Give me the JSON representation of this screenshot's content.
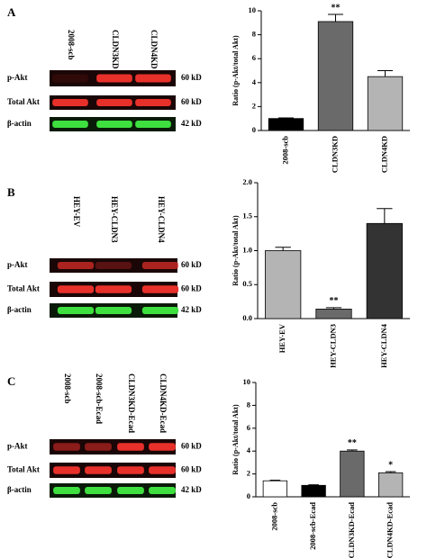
{
  "chart_data": [
    {
      "type": "bar",
      "panel": "A",
      "ylabel": "Ratio (p-Akt/total Akt)",
      "categories": [
        "2008-scb",
        "CLDN3KD",
        "CLDN4KD"
      ],
      "values": [
        1.0,
        9.1,
        4.5
      ],
      "errors": [
        0.05,
        0.6,
        0.5
      ],
      "colors": [
        "#000000",
        "#6a6a6a",
        "#b4b4b4"
      ],
      "annotations": [
        null,
        "**",
        null
      ],
      "ylim": [
        0,
        10
      ],
      "yticks": [
        0,
        2,
        4,
        6,
        8,
        10
      ]
    },
    {
      "type": "bar",
      "panel": "B",
      "ylabel": "Ratio (p-Akt/total Akt)",
      "categories": [
        "HEY-EV",
        "HEY-CLDN3",
        "HEY-CLDN4"
      ],
      "values": [
        1.0,
        0.14,
        1.4
      ],
      "errors": [
        0.05,
        0.02,
        0.22
      ],
      "colors": [
        "#b4b4b4",
        "#6a6a6a",
        "#333333"
      ],
      "annotations": [
        null,
        "**",
        null
      ],
      "ylim": [
        0,
        2
      ],
      "yticks": [
        {
          "value": 0,
          "label": "0.0"
        },
        0.5,
        {
          "value": 1,
          "label": "1.0"
        },
        1.5,
        {
          "value": 2,
          "label": "2.0"
        }
      ]
    },
    {
      "type": "bar",
      "panel": "C",
      "ylabel": "Ratio (p-Akt/total Akt)",
      "categories": [
        "2008-scb",
        "2008-scb-Ecad",
        "CLDN3KD-Ecad",
        "CLDN4KD-Ecad"
      ],
      "values": [
        1.4,
        1.0,
        4.0,
        2.1
      ],
      "errors": [
        0.05,
        0.05,
        0.1,
        0.1
      ],
      "colors": [
        "#ffffff",
        "#000000",
        "#6a6a6a",
        "#b4b4b4"
      ],
      "annotations": [
        null,
        null,
        "**",
        "*"
      ],
      "ylim": [
        0,
        10
      ],
      "yticks": [
        0,
        2,
        4,
        6,
        8,
        10
      ]
    }
  ],
  "blots": [
    {
      "lanes": [
        "2008-scb",
        "CLDN3KD",
        "CLDN4KD"
      ],
      "rows": [
        {
          "name": "p-Akt",
          "size": "60 kD"
        },
        {
          "name": "Total Akt",
          "size": "60 kD"
        },
        {
          "name": "β-actin",
          "size": "42 kD"
        }
      ]
    },
    {
      "lanes": [
        "HEY-EV",
        "HEY-CLDN3",
        "HEY-CLDN4"
      ],
      "rows": [
        {
          "name": "p-Akt",
          "size": "60 kD"
        },
        {
          "name": "Total Akt",
          "size": "60 kD"
        },
        {
          "name": "β-actin",
          "size": "42 kD"
        }
      ]
    },
    {
      "lanes": [
        "2008-scb",
        "2008-scb-Ecad",
        "CLDN3KD-Ecad",
        "CLDN4KD-Ecad"
      ],
      "rows": [
        {
          "name": "p-Akt",
          "size": "60 kD"
        },
        {
          "name": "Total Akt",
          "size": "60 kD"
        },
        {
          "name": "β-actin",
          "size": "42 kD"
        }
      ]
    }
  ]
}
